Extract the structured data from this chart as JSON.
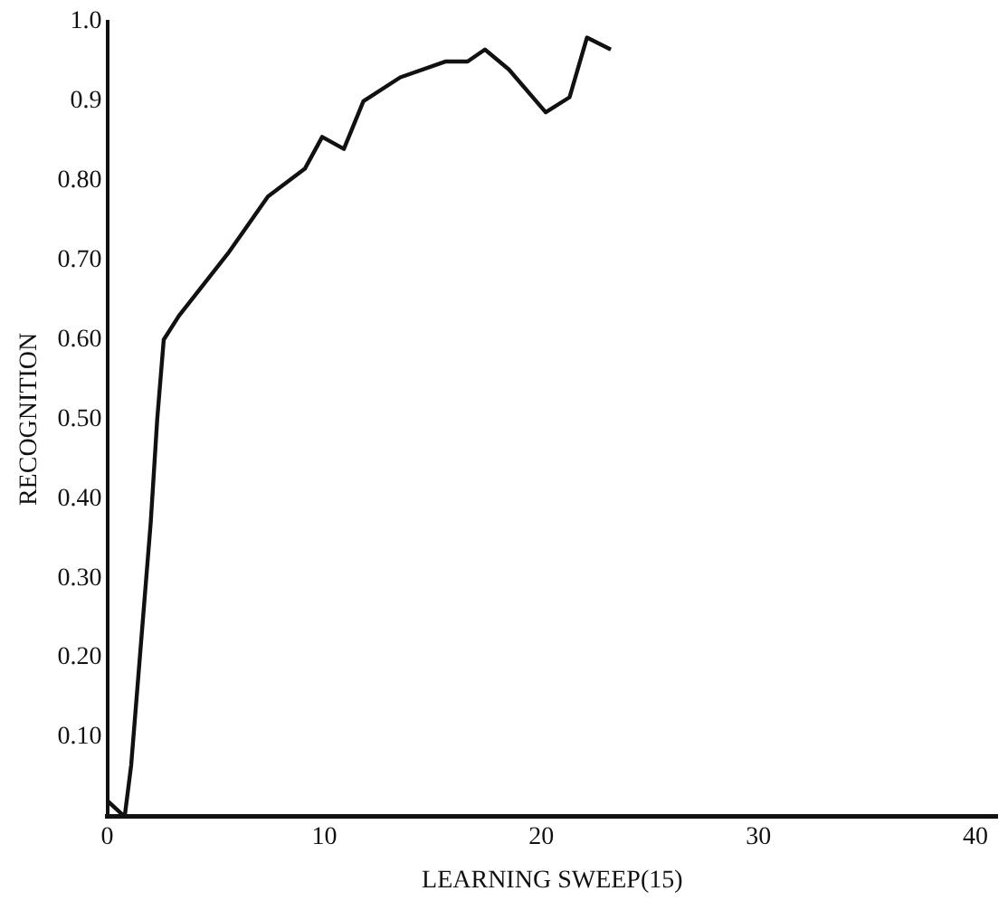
{
  "chart_data": {
    "type": "line",
    "xlabel": "LEARNING SWEEP(15)",
    "ylabel": "RECOGNITION",
    "x": [
      0,
      0.8,
      1.1,
      2.0,
      2.3,
      2.6,
      3.3,
      5.6,
      7.4,
      9.1,
      9.9,
      10.9,
      11.8,
      13.5,
      15.6,
      16.6,
      17.4,
      18.5,
      20.2,
      21.3,
      22.1,
      23.2
    ],
    "series": [
      {
        "color": "#111111",
        "values": [
          0.02,
          0,
          0.065,
          0.37,
          0.5,
          0.6,
          0.63,
          0.71,
          0.78,
          0.815,
          0.855,
          0.84,
          0.9,
          0.93,
          0.95,
          0.95,
          0.965,
          0.94,
          0.886,
          0.905,
          0.98,
          0.965
        ]
      }
    ],
    "xlim": [
      0,
      41
    ],
    "xticks": [
      0,
      10,
      20,
      30,
      40
    ],
    "ylim": [
      0,
      1.0
    ],
    "yticks": [
      {
        "value": 0.1,
        "label": "0.10"
      },
      {
        "value": 0.2,
        "label": "0.20"
      },
      {
        "value": 0.3,
        "label": "0.30"
      },
      {
        "value": 0.4,
        "label": "0.40"
      },
      {
        "value": 0.5,
        "label": "0.50"
      },
      {
        "value": 0.6,
        "label": "0.60"
      },
      {
        "value": 0.7,
        "label": "0.70"
      },
      {
        "value": 0.8,
        "label": "0.80"
      },
      {
        "value": 0.9,
        "label": "0.9"
      },
      {
        "value": 1.0,
        "label": "1.0"
      }
    ],
    "grid": false,
    "legend": false,
    "marker": "none",
    "line_style": "solid"
  }
}
